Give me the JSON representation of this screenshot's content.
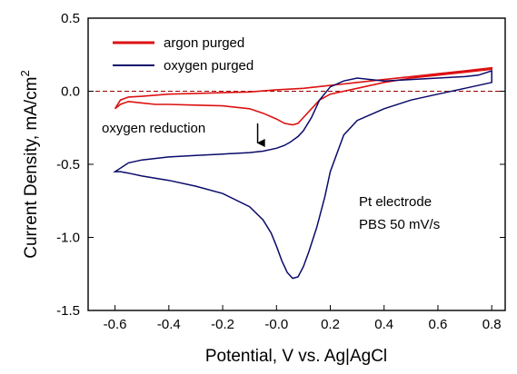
{
  "chart_data": {
    "type": "line",
    "xlabel": "Potential, V vs. Ag|AgCl",
    "ylabel_main": "Current Density, mA/cm",
    "ylabel_sup": "2",
    "xlim": [
      -0.7,
      0.85
    ],
    "ylim": [
      -1.5,
      0.5
    ],
    "x_ticks": [
      -0.6,
      -0.4,
      -0.2,
      0.0,
      0.2,
      0.4,
      0.6,
      0.8
    ],
    "x_tick_labels": [
      "-0.6",
      "-0.4",
      "-0.2",
      "-0.0",
      "0.2",
      "0.4",
      "0.6",
      "0.8"
    ],
    "y_ticks": [
      0.5,
      0.0,
      -0.5,
      -1.0,
      -1.5
    ],
    "y_tick_labels": [
      "0.5",
      "0.0",
      "-0.5",
      "-1.0",
      "-1.5"
    ],
    "zero_line": {
      "y": 0.0,
      "color": "#990000",
      "style": "dashed"
    },
    "grid": false,
    "legend_position": "top-left",
    "series": [
      {
        "name": "argon purged",
        "color": "#dd1111",
        "x": [
          -0.6,
          -0.58,
          -0.55,
          -0.5,
          -0.45,
          -0.4,
          -0.3,
          -0.2,
          -0.1,
          -0.05,
          0.0,
          0.03,
          0.06,
          0.08,
          0.1,
          0.13,
          0.16,
          0.2,
          0.3,
          0.4,
          0.5,
          0.6,
          0.7,
          0.8,
          0.8,
          0.7,
          0.6,
          0.5,
          0.4,
          0.3,
          0.25,
          0.2,
          0.1,
          0.0,
          -0.1,
          -0.2,
          -0.3,
          -0.4,
          -0.5,
          -0.55,
          -0.58,
          -0.6
        ],
        "y": [
          -0.12,
          -0.09,
          -0.07,
          -0.08,
          -0.09,
          -0.09,
          -0.095,
          -0.1,
          -0.12,
          -0.15,
          -0.19,
          -0.22,
          -0.23,
          -0.22,
          -0.18,
          -0.12,
          -0.06,
          -0.02,
          0.02,
          0.06,
          0.09,
          0.11,
          0.13,
          0.15,
          0.16,
          0.14,
          0.12,
          0.1,
          0.08,
          0.06,
          0.05,
          0.04,
          0.02,
          0.01,
          -0.005,
          -0.01,
          -0.015,
          -0.02,
          -0.035,
          -0.04,
          -0.06,
          -0.12
        ]
      },
      {
        "name": "oxygen purged",
        "color": "#0a0a6a",
        "x": [
          -0.6,
          -0.55,
          -0.5,
          -0.4,
          -0.3,
          -0.2,
          -0.1,
          -0.05,
          0.0,
          0.03,
          0.05,
          0.08,
          0.1,
          0.13,
          0.16,
          0.2,
          0.25,
          0.3,
          0.4,
          0.5,
          0.6,
          0.7,
          0.75,
          0.8,
          0.8,
          0.7,
          0.6,
          0.5,
          0.4,
          0.3,
          0.25,
          0.2,
          0.18,
          0.15,
          0.12,
          0.1,
          0.08,
          0.06,
          0.04,
          0.02,
          0.0,
          -0.02,
          -0.05,
          -0.1,
          -0.2,
          -0.3,
          -0.4,
          -0.5,
          -0.55,
          -0.58,
          -0.6
        ],
        "y": [
          -0.55,
          -0.49,
          -0.47,
          -0.45,
          -0.44,
          -0.43,
          -0.42,
          -0.41,
          -0.39,
          -0.37,
          -0.35,
          -0.31,
          -0.27,
          -0.18,
          -0.06,
          0.03,
          0.07,
          0.09,
          0.07,
          0.08,
          0.09,
          0.1,
          0.11,
          0.14,
          0.06,
          0.02,
          -0.02,
          -0.06,
          -0.12,
          -0.2,
          -0.3,
          -0.55,
          -0.72,
          -0.93,
          -1.1,
          -1.2,
          -1.27,
          -1.28,
          -1.24,
          -1.16,
          -1.06,
          -0.97,
          -0.88,
          -0.79,
          -0.7,
          -0.65,
          -0.61,
          -0.58,
          -0.56,
          -0.55,
          -0.55
        ]
      }
    ],
    "annotations": [
      {
        "text": "oxygen reduction",
        "arrow_from": [
          -0.07,
          -0.22
        ],
        "arrow_to": [
          -0.07,
          -0.41
        ]
      },
      {
        "text": "Pt electrode"
      },
      {
        "text": "PBS 50 mV/s"
      }
    ]
  }
}
